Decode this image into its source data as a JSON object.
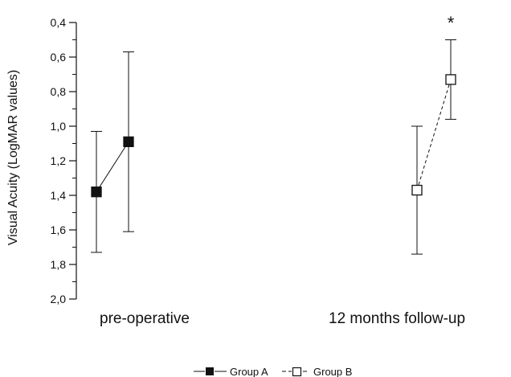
{
  "chart_data": {
    "type": "line",
    "ylabel": "Visual Acuity (LogMAR values)",
    "xlabel": "",
    "categories": [
      "pre-operative",
      "12 months follow-up"
    ],
    "yticks": [
      "0,4",
      "0,6",
      "0,8",
      "1,0",
      "1,2",
      "1,4",
      "1,6",
      "1,8",
      "2,0"
    ],
    "ylim": [
      0.4,
      2.0
    ],
    "y_inverted": true,
    "grid": false,
    "legend_position": "bottom-center",
    "annotation": "*",
    "series": [
      {
        "name": "Group A",
        "marker": "filled-square",
        "line_style": "solid",
        "values": [
          1.38,
          1.09
        ],
        "error_low": [
          1.03,
          0.57
        ],
        "error_high": [
          1.73,
          1.61
        ]
      },
      {
        "name": "Group B",
        "marker": "open-square",
        "line_style": "dashed",
        "values": [
          1.37,
          0.73
        ],
        "error_low": [
          1.0,
          0.5
        ],
        "error_high": [
          1.74,
          0.96
        ]
      }
    ]
  }
}
